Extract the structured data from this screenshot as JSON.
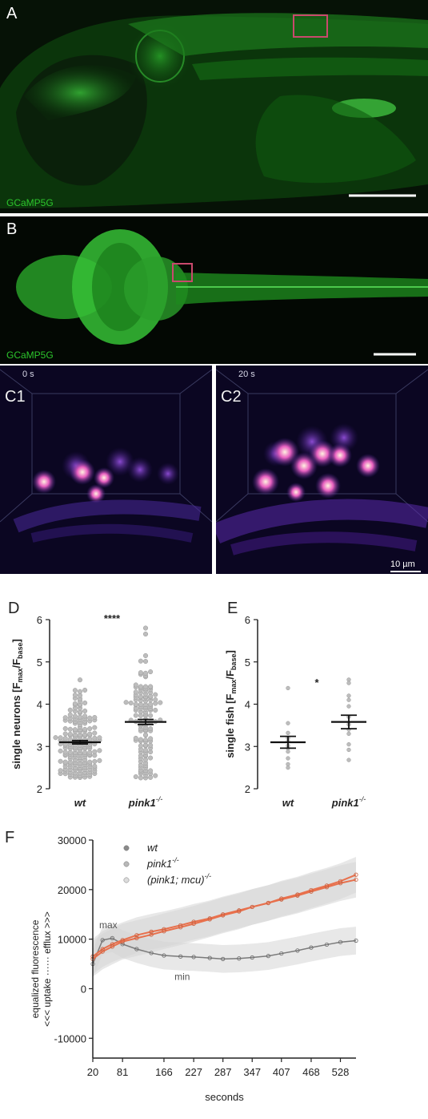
{
  "panel_a": {
    "label": "A",
    "stain": "GCaMP5G"
  },
  "panel_b": {
    "label": "B",
    "stain": "GCaMP5G"
  },
  "panel_c": {
    "c1": {
      "label": "C1",
      "time": "0 s"
    },
    "c2": {
      "label": "C2",
      "time": "20 s"
    },
    "scale": "10 µm"
  },
  "panel_d": {
    "label": "D",
    "significance": "****"
  },
  "panel_e": {
    "label": "E",
    "significance": "*"
  },
  "panel_f": {
    "label": "F"
  },
  "chart_data": [
    {
      "id": "D",
      "type": "scatter",
      "ylabel_main": "single neurons [F",
      "ylabel_sub1": "max",
      "ylabel_mid": "/F",
      "ylabel_sub2": "base",
      "ylabel_end": "]",
      "categories": [
        "wt",
        "pink1"
      ],
      "cat_sup": [
        "",
        "-/-"
      ],
      "ylim": [
        2,
        6
      ],
      "yticks": [
        2,
        3,
        4,
        5,
        6
      ],
      "means": [
        3.1,
        3.58
      ],
      "sem": [
        0.04,
        0.06
      ],
      "points_per_group": [
        180,
        130
      ]
    },
    {
      "id": "E",
      "type": "scatter",
      "ylabel_main": "single fish [F",
      "ylabel_sub1": "max",
      "ylabel_mid": "/F",
      "ylabel_sub2": "base",
      "ylabel_end": "]",
      "categories": [
        "wt",
        "pink1"
      ],
      "cat_sup": [
        "",
        "-/-"
      ],
      "ylim": [
        2,
        6
      ],
      "yticks": [
        2,
        3,
        4,
        5,
        6
      ],
      "means": [
        3.1,
        3.58
      ],
      "sem": [
        0.14,
        0.16
      ],
      "points": [
        [
          4.38,
          3.55,
          3.32,
          3.2,
          3.12,
          3.02,
          2.96,
          2.88,
          2.72,
          2.58,
          2.5
        ],
        [
          4.58,
          4.5,
          4.2,
          4.1,
          3.95,
          3.7,
          3.52,
          3.4,
          3.3,
          3.05,
          2.92,
          2.68
        ]
      ]
    },
    {
      "id": "F",
      "type": "line",
      "ylabel": "equalized fluorescence",
      "ylabel2": "<<< uptake ······ efflux >>>",
      "xlabel": "seconds",
      "xticks": [
        20,
        81,
        166,
        227,
        287,
        347,
        407,
        468,
        528
      ],
      "yticks": [
        -10000,
        0,
        10000,
        20000,
        30000
      ],
      "xlim": [
        20,
        560
      ],
      "ylim": [
        -14000,
        30000
      ],
      "annotations": [
        "max",
        "min"
      ],
      "series": [
        {
          "name": "wt",
          "name_sup": "",
          "x": [
            20,
            40,
            60,
            81,
            110,
            140,
            166,
            200,
            227,
            260,
            287,
            320,
            347,
            380,
            407,
            440,
            468,
            500,
            528,
            560
          ],
          "y": [
            5000,
            9800,
            10200,
            9000,
            8000,
            7200,
            6700,
            6500,
            6400,
            6200,
            6000,
            6100,
            6300,
            6600,
            7100,
            7700,
            8300,
            8900,
            9400,
            9700
          ]
        },
        {
          "name": "pink1",
          "name_sup": "-/-",
          "x": [
            20,
            40,
            60,
            81,
            110,
            140,
            166,
            200,
            227,
            260,
            287,
            320,
            347,
            380,
            407,
            440,
            468,
            500,
            528,
            560
          ],
          "y": [
            6500,
            8000,
            9000,
            9800,
            10800,
            11500,
            12000,
            12800,
            13500,
            14200,
            15000,
            15800,
            16500,
            17300,
            18000,
            18800,
            19600,
            20500,
            21300,
            22000
          ]
        },
        {
          "name": "(pink1; mcu)",
          "name_sup": "-/-",
          "x": [
            20,
            40,
            60,
            81,
            110,
            140,
            166,
            200,
            227,
            260,
            287,
            320,
            347,
            380,
            407,
            440,
            468,
            500,
            528,
            560
          ],
          "y": [
            6000,
            7500,
            8500,
            9500,
            10200,
            10900,
            11600,
            12400,
            13100,
            14000,
            14800,
            15600,
            16500,
            17300,
            18200,
            19000,
            19900,
            20800,
            21700,
            23000
          ]
        }
      ],
      "series_colors": [
        "#8a8a8a",
        "#b8b8b8",
        "#dcdcdc"
      ],
      "line_colors": [
        "#7a7a7a",
        "#e8704c",
        "#e8704c"
      ]
    }
  ]
}
